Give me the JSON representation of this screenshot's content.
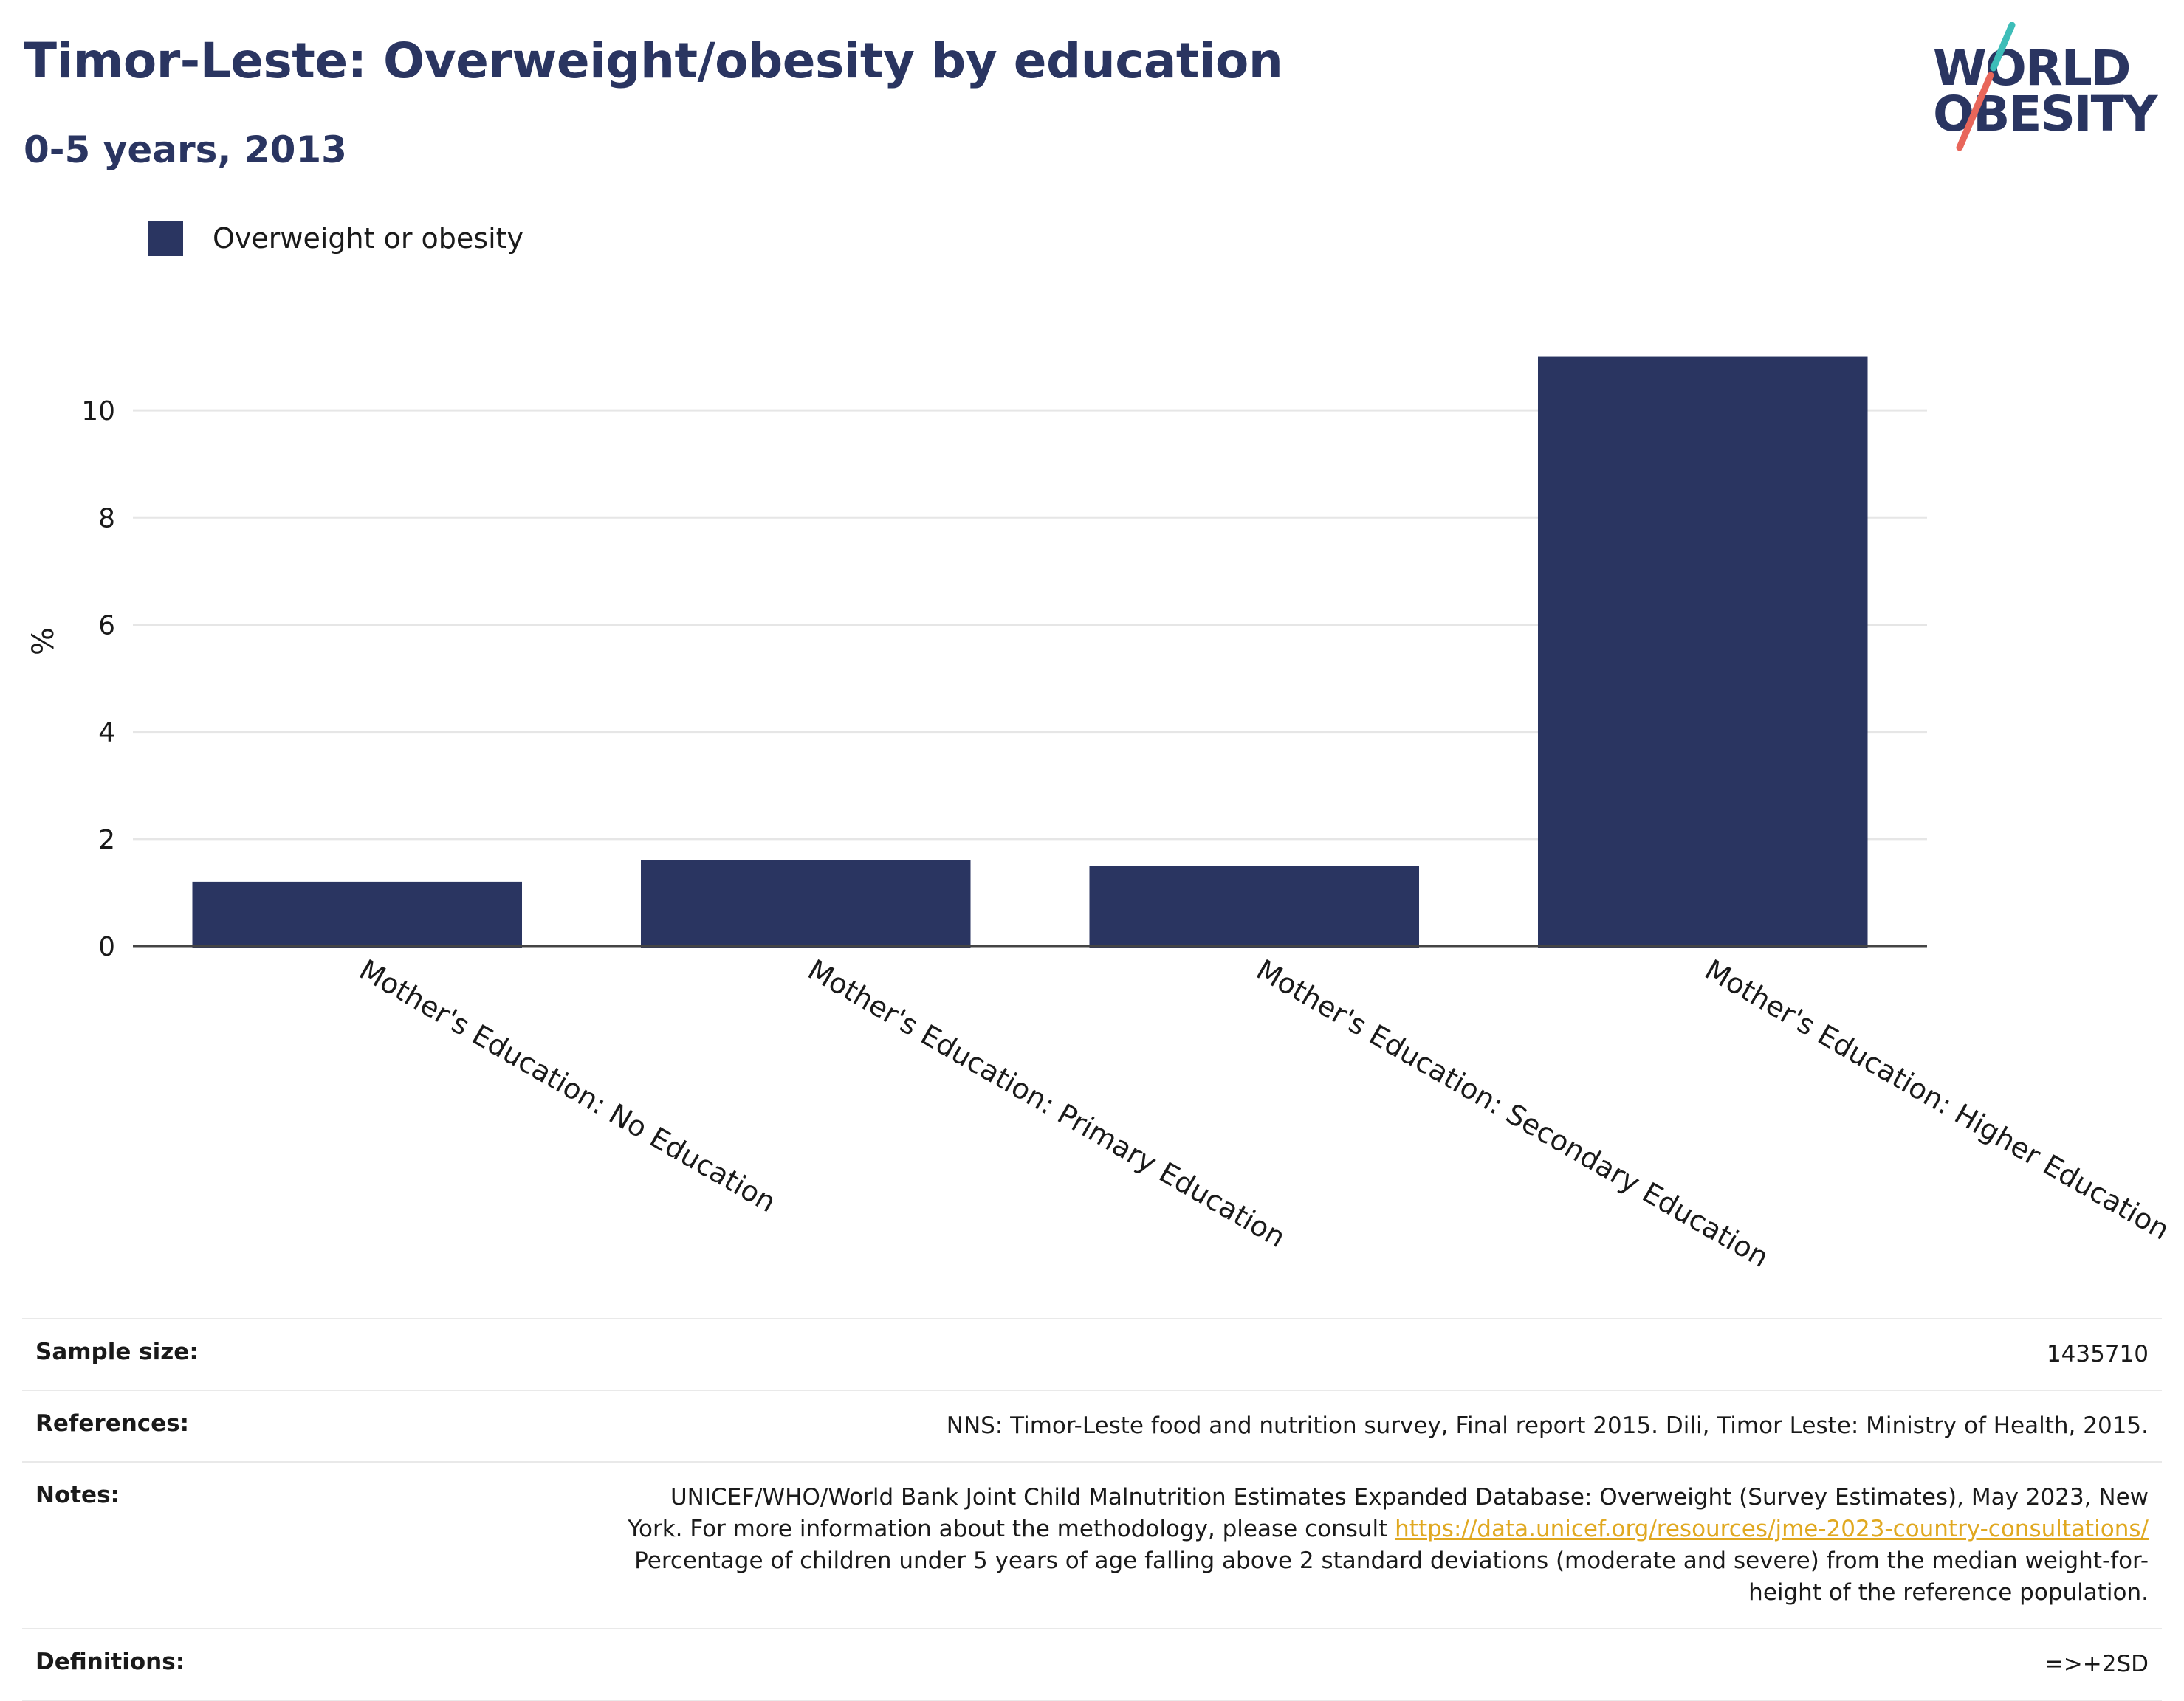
{
  "header": {
    "title": "Timor-Leste: Overweight/obesity by education",
    "subtitle": "0-5 years, 2013"
  },
  "logo": {
    "line1": "WORLD",
    "line2": "OBESITY",
    "colors": {
      "text": "#2a3561",
      "slash_top": "#3dbdb8",
      "slash_bottom": "#e8665a"
    }
  },
  "legend": {
    "label": "Overweight or obesity",
    "color": "#2a3561",
    "placement": "top-left"
  },
  "chart_data": {
    "type": "bar",
    "categories": [
      "Mother's Education: No Education",
      "Mother's Education: Primary Education",
      "Mother's Education: Secondary Education",
      "Mother's Education: Higher Education"
    ],
    "series": [
      {
        "name": "Overweight or obesity",
        "values": [
          1.2,
          1.6,
          1.5,
          11.0
        ],
        "color": "#2a3561"
      }
    ],
    "ylabel": "%",
    "ylim": [
      0,
      11.6
    ],
    "yticks": [
      0,
      2,
      4,
      6,
      8,
      10
    ],
    "grid": true
  },
  "info": {
    "sample_size": {
      "label": "Sample size:",
      "value": "1435710"
    },
    "references": {
      "label": "References:",
      "value": "NNS: Timor-Leste food and nutrition survey, Final report 2015. Dili, Timor Leste: Ministry of Health, 2015."
    },
    "notes": {
      "label": "Notes:",
      "line1": "UNICEF/WHO/World Bank Joint Child Malnutrition Estimates Expanded Database: Overweight (Survey Estimates), May 2023, New",
      "line2_prefix": "York. For more information about the methodology, please consult ",
      "link": "https://data.unicef.org/resources/jme-2023-country-consultations/",
      "line3": "Percentage of children under 5 years of age falling above 2 standard deviations (moderate and severe) from the median weight-for-",
      "line4": "height of the reference population."
    },
    "definitions": {
      "label": "Definitions:",
      "value": "=>+2SD"
    }
  }
}
